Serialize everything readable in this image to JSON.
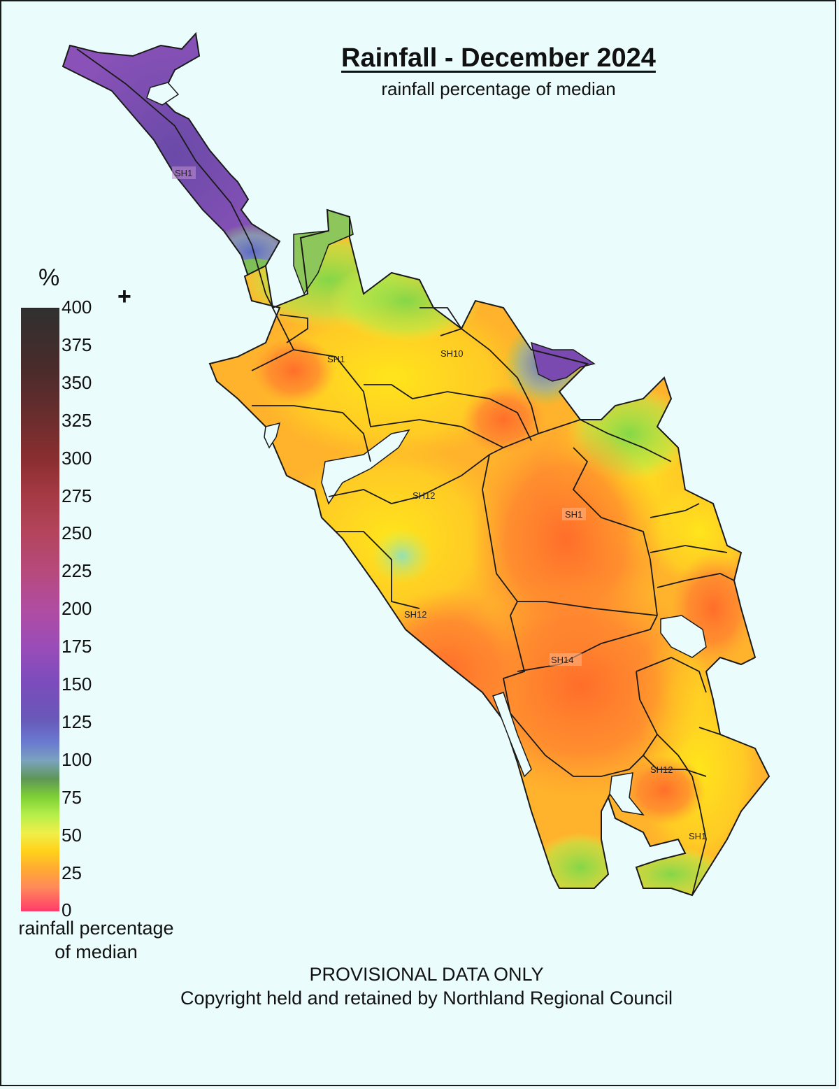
{
  "header": {
    "title": "Rainfall - December 2024",
    "subtitle": "rainfall percentage of median"
  },
  "legend": {
    "unit": "%",
    "overflow_marker": "+",
    "ticks": [
      "400",
      "375",
      "350",
      "325",
      "300",
      "275",
      "250",
      "225",
      "200",
      "175",
      "150",
      "125",
      "100",
      "75",
      "50",
      "25",
      "0"
    ],
    "caption_line1": "rainfall percentage",
    "caption_line2": "of median"
  },
  "map": {
    "road_labels": [
      "SH1",
      "SH1",
      "SH10",
      "SH12",
      "SH1",
      "SH12",
      "SH14",
      "SH12",
      "SH1"
    ],
    "colors": {
      "very_wet": "#7a4ab0",
      "wet": "#6a78c8",
      "near_normal": "#8dd64a",
      "dry": "#f6e020",
      "very_dry": "#ff9a30",
      "extremely_dry": "#ff7a32",
      "background": "#eafcfc",
      "outline": "#1a1a1a"
    }
  },
  "footer": {
    "notice": "PROVISIONAL DATA ONLY",
    "copyright": "Copyright held and retained by Northland Regional Council"
  }
}
